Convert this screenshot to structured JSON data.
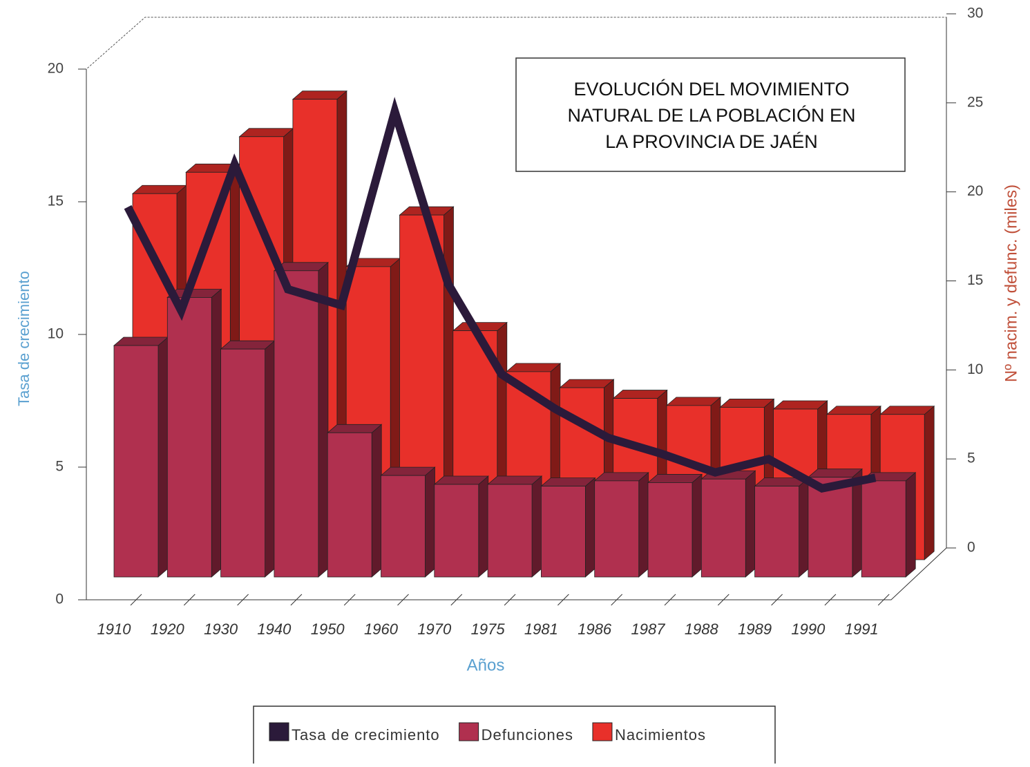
{
  "chart_data": {
    "type": "bar_line_3d",
    "title": [
      "EVOLUCIÓN DEL MOVIMIENTO",
      "NATURAL DE LA POBLACIÓN EN",
      "LA PROVINCIA DE JAÉN"
    ],
    "x_label": "Años",
    "y_label": "Tasa de crecimiento",
    "y2_label": "Nº nacim. y defunc. (miles)",
    "categories": [
      "1910",
      "1920",
      "1930",
      "1940",
      "1950",
      "1960",
      "1970",
      "1975",
      "1981",
      "1986",
      "1987",
      "1988",
      "1989",
      "1990",
      "1991"
    ],
    "ylim": [
      0,
      20
    ],
    "yticks": [
      0,
      5,
      10,
      15,
      20
    ],
    "y2lim": [
      0,
      30
    ],
    "y2ticks": [
      0,
      5,
      10,
      15,
      20,
      25,
      30
    ],
    "series": [
      {
        "name": "Tasa de crecimiento",
        "color": "#2b1a3a",
        "kind": "line",
        "values": [
          14.8,
          10.9,
          16.4,
          11.7,
          11.1,
          18.4,
          11.9,
          8.5,
          7.2,
          6.1,
          5.5,
          4.8,
          5.3,
          4.2,
          4.6
        ]
      },
      {
        "name": "Defunciones",
        "color": "#b0304f",
        "kind": "bar",
        "axis": "y2",
        "row": "front",
        "values": [
          13.0,
          15.7,
          12.8,
          17.2,
          8.1,
          5.7,
          5.2,
          5.2,
          5.1,
          5.4,
          5.3,
          5.5,
          5.1,
          5.6,
          5.4
        ]
      },
      {
        "name": "Nacimientos",
        "color": "#e8302a",
        "kind": "bar",
        "axis": "y2",
        "row": "back",
        "values": [
          19.9,
          21.1,
          23.1,
          25.2,
          15.8,
          18.7,
          12.2,
          9.9,
          9.0,
          8.4,
          8.0,
          7.9,
          7.8,
          7.5,
          7.5
        ]
      }
    ]
  }
}
